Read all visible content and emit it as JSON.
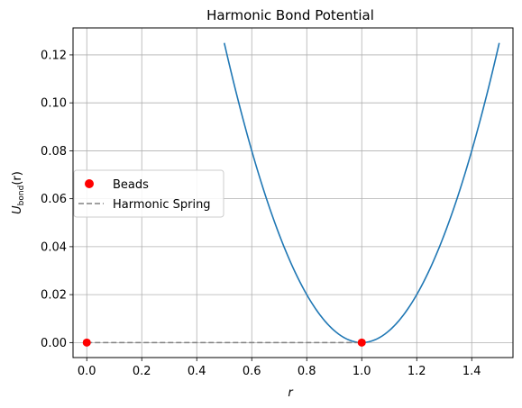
{
  "chart_data": {
    "type": "line",
    "title": "Harmonic Bond Potential",
    "xlabel": "r",
    "ylabel_main": "U",
    "ylabel_sub": "bond",
    "ylabel_tail": "(r)",
    "xlim": [
      -0.05,
      1.55
    ],
    "ylim": [
      -0.00625,
      0.13125
    ],
    "xticks": [
      0.0,
      0.2,
      0.4,
      0.6,
      0.8,
      1.0,
      1.2,
      1.4
    ],
    "xtick_labels": [
      "0.0",
      "0.2",
      "0.4",
      "0.6",
      "0.8",
      "1.0",
      "1.2",
      "1.4"
    ],
    "yticks": [
      0.0,
      0.02,
      0.04,
      0.06,
      0.08,
      0.1,
      0.12
    ],
    "ytick_labels": [
      "0.00",
      "0.02",
      "0.04",
      "0.06",
      "0.08",
      "0.10",
      "0.12"
    ],
    "grid": true,
    "legend_position": "center-left",
    "series": [
      {
        "kind": "curve",
        "color": "#1f77b4",
        "x": [
          0.5,
          0.55,
          0.6,
          0.65,
          0.7,
          0.75,
          0.8,
          0.85,
          0.9,
          0.95,
          1.0,
          1.05,
          1.1,
          1.15,
          1.2,
          1.25,
          1.3,
          1.35,
          1.4,
          1.45,
          1.5
        ],
        "y": [
          0.125,
          0.10125,
          0.08,
          0.06125,
          0.045,
          0.03125,
          0.02,
          0.01125,
          0.005,
          0.00125,
          0.0,
          0.00125,
          0.005,
          0.01125,
          0.02,
          0.03125,
          0.045,
          0.06125,
          0.08,
          0.10125,
          0.125
        ]
      },
      {
        "kind": "scatter",
        "name": "Beads",
        "color": "#ff0000",
        "x": [
          0.0,
          1.0
        ],
        "y": [
          0.0,
          0.0
        ]
      },
      {
        "kind": "dashed-line",
        "name": "Harmonic Spring",
        "color": "#808080",
        "x": [
          0.0,
          1.0
        ],
        "y": [
          0.0,
          0.0
        ]
      }
    ]
  }
}
